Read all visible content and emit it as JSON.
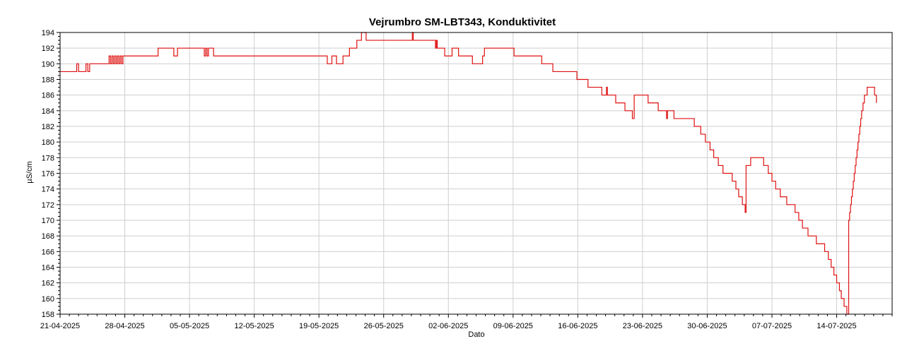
{
  "chart_data": {
    "type": "line",
    "title": "Vejrumbro SM-LBT343, Konduktivitet",
    "xlabel": "Dato",
    "ylabel": "µS/cm",
    "ylim": [
      158,
      194
    ],
    "xlim_days": [
      0,
      90
    ],
    "y_ticks": [
      158,
      160,
      162,
      164,
      166,
      168,
      170,
      172,
      174,
      176,
      178,
      180,
      182,
      184,
      186,
      188,
      190,
      192,
      194
    ],
    "x_ticks": [
      {
        "day": 0,
        "label": "21-04-2025"
      },
      {
        "day": 7,
        "label": "28-04-2025"
      },
      {
        "day": 14,
        "label": "05-05-2025"
      },
      {
        "day": 21,
        "label": "12-05-2025"
      },
      {
        "day": 28,
        "label": "19-05-2025"
      },
      {
        "day": 35,
        "label": "26-05-2025"
      },
      {
        "day": 42,
        "label": "02-06-2025"
      },
      {
        "day": 49,
        "label": "09-06-2025"
      },
      {
        "day": 56,
        "label": "16-06-2025"
      },
      {
        "day": 63,
        "label": "23-06-2025"
      },
      {
        "day": 70,
        "label": "30-06-2025"
      },
      {
        "day": 77,
        "label": "07-07-2025"
      },
      {
        "day": 84,
        "label": "14-07-2025"
      }
    ],
    "grid": true,
    "line_color": "#e01010",
    "series": [
      {
        "name": "",
        "step": true,
        "points": [
          [
            0,
            189
          ],
          [
            1.6,
            189
          ],
          [
            1.8,
            190
          ],
          [
            2.0,
            189
          ],
          [
            2.6,
            189
          ],
          [
            2.8,
            190
          ],
          [
            3.0,
            189
          ],
          [
            3.2,
            190
          ],
          [
            5.2,
            190
          ],
          [
            5.3,
            191
          ],
          [
            5.45,
            190
          ],
          [
            5.6,
            191
          ],
          [
            5.75,
            190
          ],
          [
            5.9,
            191
          ],
          [
            6.05,
            190
          ],
          [
            6.2,
            191
          ],
          [
            6.35,
            190
          ],
          [
            6.5,
            191
          ],
          [
            6.65,
            190
          ],
          [
            6.8,
            191
          ],
          [
            10.5,
            191
          ],
          [
            10.6,
            192
          ],
          [
            12.2,
            192
          ],
          [
            12.3,
            191
          ],
          [
            12.6,
            191
          ],
          [
            12.7,
            192
          ],
          [
            15.5,
            192
          ],
          [
            15.6,
            191
          ],
          [
            15.75,
            192
          ],
          [
            15.9,
            191
          ],
          [
            16.05,
            192
          ],
          [
            16.5,
            192
          ],
          [
            16.6,
            191
          ],
          [
            28.8,
            191
          ],
          [
            28.9,
            190
          ],
          [
            29.3,
            190
          ],
          [
            29.4,
            191
          ],
          [
            29.8,
            191
          ],
          [
            29.9,
            190
          ],
          [
            30.5,
            190
          ],
          [
            30.6,
            191
          ],
          [
            31.2,
            191
          ],
          [
            31.3,
            192
          ],
          [
            32.0,
            192
          ],
          [
            32.1,
            193
          ],
          [
            32.5,
            193
          ],
          [
            32.6,
            194
          ],
          [
            33.0,
            194
          ],
          [
            33.1,
            193
          ],
          [
            38.0,
            193
          ],
          [
            38.1,
            194
          ],
          [
            38.2,
            193
          ],
          [
            40.5,
            193
          ],
          [
            40.6,
            192
          ],
          [
            40.7,
            193
          ],
          [
            40.8,
            192
          ],
          [
            41.5,
            192
          ],
          [
            41.6,
            191
          ],
          [
            42.3,
            191
          ],
          [
            42.4,
            192
          ],
          [
            43.0,
            192
          ],
          [
            43.1,
            191
          ],
          [
            44.5,
            191
          ],
          [
            44.6,
            190
          ],
          [
            45.0,
            190
          ],
          [
            45.1,
            190
          ],
          [
            45.6,
            190
          ],
          [
            45.7,
            191
          ],
          [
            45.9,
            192
          ],
          [
            49.0,
            192
          ],
          [
            49.1,
            191
          ],
          [
            52.0,
            191
          ],
          [
            52.1,
            190
          ],
          [
            53.2,
            190
          ],
          [
            53.3,
            189
          ],
          [
            55.8,
            189
          ],
          [
            55.9,
            188
          ],
          [
            57.0,
            188
          ],
          [
            57.1,
            187
          ],
          [
            58.5,
            187
          ],
          [
            58.6,
            186
          ],
          [
            59.0,
            186
          ],
          [
            59.1,
            187
          ],
          [
            59.2,
            186
          ],
          [
            60.0,
            186
          ],
          [
            60.1,
            185
          ],
          [
            61.0,
            185
          ],
          [
            61.1,
            184
          ],
          [
            61.8,
            184
          ],
          [
            61.9,
            183
          ],
          [
            62.0,
            183
          ],
          [
            62.1,
            186
          ],
          [
            63.5,
            186
          ],
          [
            63.6,
            185
          ],
          [
            64.6,
            185
          ],
          [
            64.7,
            184
          ],
          [
            65.5,
            184
          ],
          [
            65.6,
            183
          ],
          [
            65.7,
            184
          ],
          [
            66.3,
            184
          ],
          [
            66.4,
            183
          ],
          [
            68.5,
            183
          ],
          [
            68.6,
            182
          ],
          [
            69.2,
            182
          ],
          [
            69.3,
            181
          ],
          [
            69.7,
            181
          ],
          [
            69.8,
            180
          ],
          [
            70.2,
            180
          ],
          [
            70.3,
            179
          ],
          [
            70.6,
            179
          ],
          [
            70.7,
            178
          ],
          [
            71.1,
            178
          ],
          [
            71.2,
            177
          ],
          [
            71.6,
            177
          ],
          [
            71.7,
            176
          ],
          [
            72.6,
            176
          ],
          [
            72.7,
            175
          ],
          [
            73.0,
            175
          ],
          [
            73.1,
            174
          ],
          [
            73.3,
            174
          ],
          [
            73.4,
            173
          ],
          [
            73.7,
            173
          ],
          [
            73.8,
            172
          ],
          [
            74.0,
            172
          ],
          [
            74.1,
            171
          ],
          [
            74.2,
            177
          ],
          [
            74.6,
            177
          ],
          [
            74.7,
            178
          ],
          [
            76.0,
            178
          ],
          [
            76.1,
            177
          ],
          [
            76.5,
            177
          ],
          [
            76.6,
            176
          ],
          [
            76.9,
            176
          ],
          [
            77.0,
            175
          ],
          [
            77.3,
            175
          ],
          [
            77.4,
            174
          ],
          [
            77.8,
            174
          ],
          [
            77.9,
            173
          ],
          [
            78.5,
            173
          ],
          [
            78.6,
            172
          ],
          [
            79.4,
            172
          ],
          [
            79.5,
            171
          ],
          [
            79.8,
            171
          ],
          [
            79.9,
            170
          ],
          [
            80.2,
            170
          ],
          [
            80.3,
            169
          ],
          [
            80.8,
            169
          ],
          [
            80.9,
            168
          ],
          [
            81.7,
            168
          ],
          [
            81.8,
            167
          ],
          [
            82.6,
            167
          ],
          [
            82.7,
            166
          ],
          [
            83.0,
            166
          ],
          [
            83.1,
            165
          ],
          [
            83.3,
            165
          ],
          [
            83.4,
            164
          ],
          [
            83.6,
            164
          ],
          [
            83.7,
            163
          ],
          [
            83.9,
            163
          ],
          [
            84.0,
            162
          ],
          [
            84.2,
            162
          ],
          [
            84.3,
            161
          ],
          [
            84.4,
            161
          ],
          [
            84.5,
            160
          ],
          [
            84.7,
            160
          ],
          [
            84.8,
            159
          ],
          [
            85.0,
            159
          ],
          [
            85.1,
            158
          ],
          [
            85.2,
            158
          ],
          [
            85.3,
            170
          ],
          [
            85.4,
            171
          ],
          [
            85.5,
            172
          ],
          [
            85.6,
            173
          ],
          [
            85.7,
            174
          ],
          [
            85.8,
            175
          ],
          [
            85.9,
            176
          ],
          [
            86.0,
            177
          ],
          [
            86.1,
            178
          ],
          [
            86.2,
            179
          ],
          [
            86.3,
            180
          ],
          [
            86.4,
            181
          ],
          [
            86.5,
            182
          ],
          [
            86.6,
            183
          ],
          [
            86.7,
            184
          ],
          [
            86.85,
            185
          ],
          [
            87.0,
            186
          ],
          [
            87.2,
            186
          ],
          [
            87.3,
            187
          ],
          [
            88.0,
            187
          ],
          [
            88.1,
            186
          ],
          [
            88.2,
            186
          ],
          [
            88.3,
            185
          ]
        ]
      }
    ]
  }
}
